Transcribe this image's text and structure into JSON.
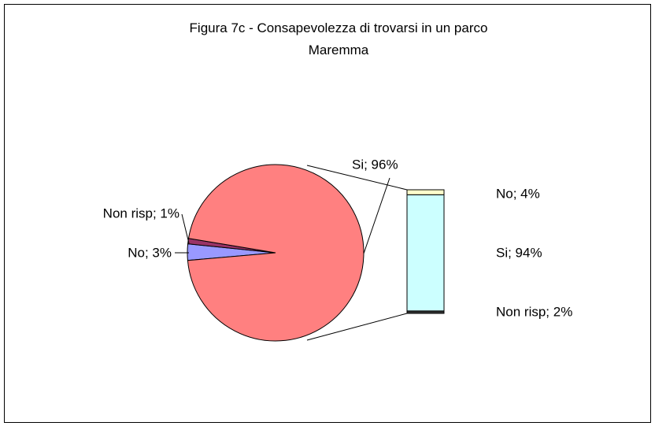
{
  "chart_data": [
    {
      "type": "pie",
      "title": "Figura 7c - Consapevolezza di trovarsi in un parco Maremma",
      "categories": [
        "No",
        "Non risp",
        "Si"
      ],
      "values": [
        3,
        1,
        96
      ],
      "value_labels": [
        "No; 3%",
        "Non risp; 1%",
        "Si; 96%"
      ],
      "colors": [
        "#9999ff",
        "#993366",
        "#ff8080"
      ]
    },
    {
      "type": "bar",
      "stacked": true,
      "categories": [
        "Non risp",
        "Si",
        "No"
      ],
      "values": [
        2,
        94,
        4
      ],
      "value_labels": [
        "Non risp; 2%",
        "Si; 94%",
        "No; 4%"
      ],
      "colors": [
        "#333333",
        "#ccffff",
        "#ffffcc"
      ]
    }
  ]
}
